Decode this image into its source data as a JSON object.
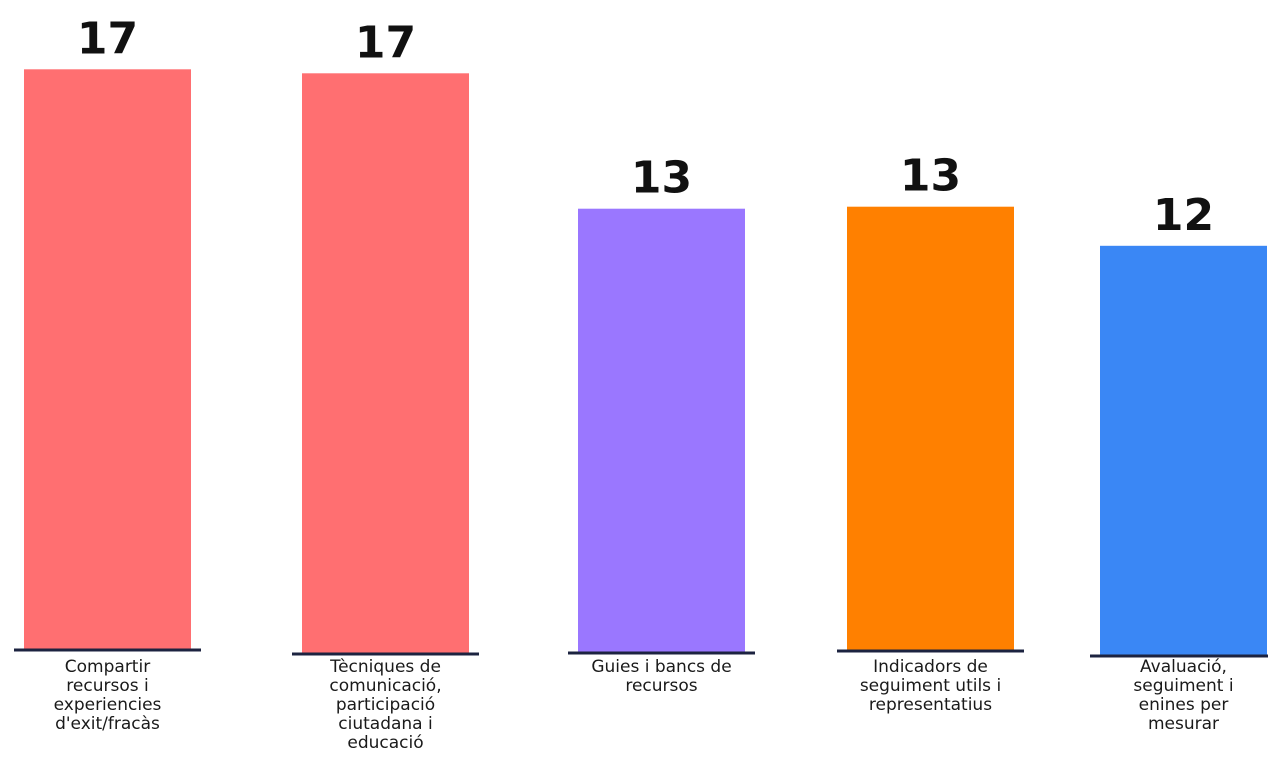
{
  "chart_data": {
    "type": "bar",
    "categories": [
      "Compartir\nrecursos i\nexperiencies\nd'exit/fracàs",
      "Tècniques de\ncomunicació,\nparticipació\nciutadana i\neducació",
      "Guies i bancs de\nrecursos",
      "Indicadors de\nseguiment utils i\nrepresentatius",
      "Avaluació,\nseguiment i\nenines per\nmesurar"
    ],
    "values": [
      17,
      17,
      13,
      13,
      12
    ],
    "data_labels": [
      "17",
      "17",
      "13",
      "13",
      "12"
    ],
    "colors": [
      "#ff6f71",
      "#ff6f71",
      "#9a77ff",
      "#ff8000",
      "#3a87f5"
    ],
    "axis_color": "#1c2340",
    "title": "",
    "xlabel": "",
    "ylabel": "",
    "ylim": [
      0,
      17
    ],
    "grid": false,
    "legend": "none"
  }
}
